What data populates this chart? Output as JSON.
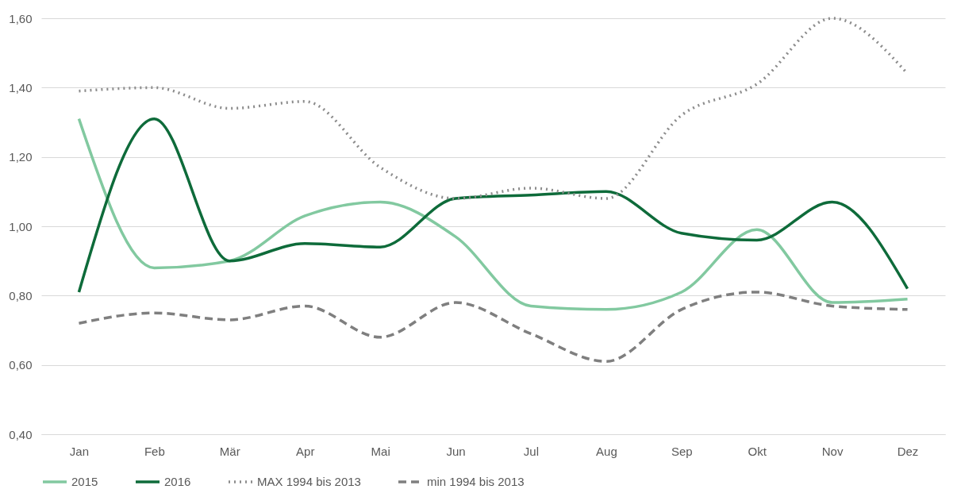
{
  "chart_data": {
    "type": "line",
    "categories": [
      "Jan",
      "Feb",
      "Mär",
      "Apr",
      "Mai",
      "Jun",
      "Jul",
      "Aug",
      "Sep",
      "Okt",
      "Nov",
      "Dez"
    ],
    "series": [
      {
        "name": "2015",
        "color": "#82c9a0",
        "line_style": "solid",
        "values": [
          1.31,
          0.88,
          0.9,
          1.03,
          1.07,
          0.97,
          0.77,
          0.76,
          0.81,
          0.99,
          0.78,
          0.79
        ]
      },
      {
        "name": "2016",
        "color": "#0e6b3a",
        "line_style": "solid",
        "values": [
          0.81,
          1.31,
          0.9,
          0.95,
          0.94,
          1.08,
          1.09,
          1.1,
          0.98,
          0.96,
          1.07,
          0.82
        ]
      },
      {
        "name": "MAX 1994 bis 2013",
        "color": "#8c8c8c",
        "line_style": "dotted",
        "values": [
          1.39,
          1.4,
          1.34,
          1.36,
          1.17,
          1.08,
          1.11,
          1.08,
          1.32,
          1.41,
          1.6,
          1.44
        ]
      },
      {
        "name": "min 1994 bis 2013",
        "color": "#7f7f7f",
        "line_style": "dashed",
        "values": [
          0.72,
          0.75,
          0.73,
          0.77,
          0.68,
          0.78,
          0.69,
          0.61,
          0.76,
          0.81,
          0.77,
          0.76
        ]
      }
    ],
    "ylim": [
      0.4,
      1.6
    ],
    "yticks": [
      {
        "value": 0.4,
        "label": "0,40"
      },
      {
        "value": 0.6,
        "label": "0,60"
      },
      {
        "value": 0.8,
        "label": "0,80"
      },
      {
        "value": 1.0,
        "label": "1,00"
      },
      {
        "value": 1.2,
        "label": "1,20"
      },
      {
        "value": 1.4,
        "label": "1,40"
      },
      {
        "value": 1.6,
        "label": "1,60"
      }
    ],
    "grid": "y",
    "legend": "bottom",
    "marker": "none"
  }
}
